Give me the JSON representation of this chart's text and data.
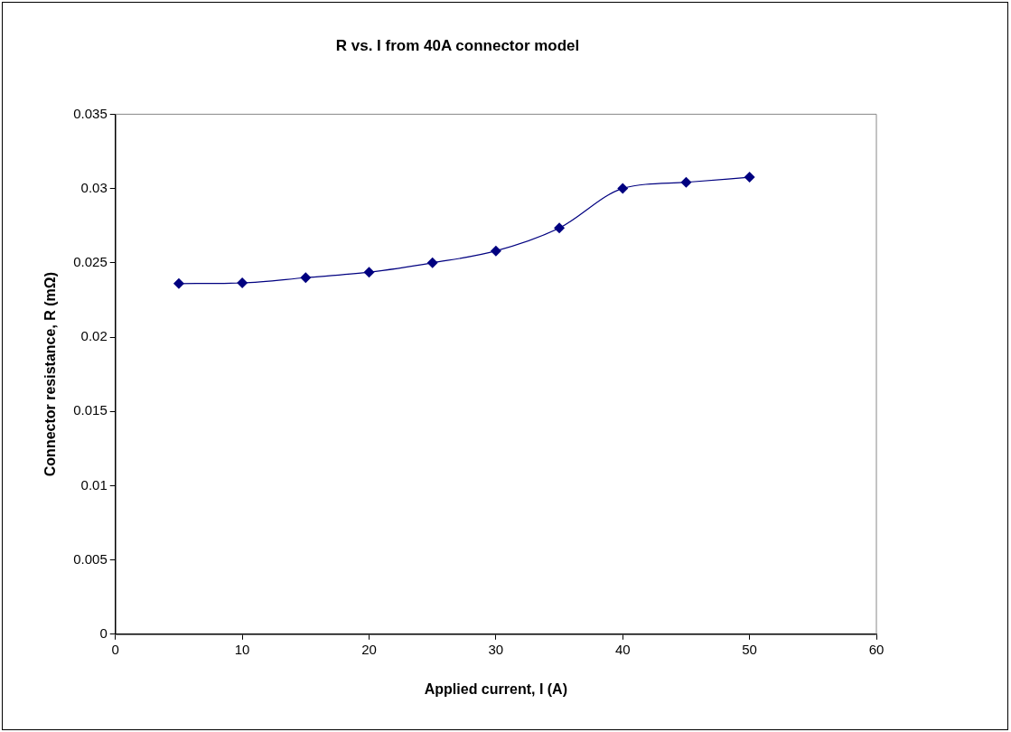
{
  "chart_data": {
    "type": "line",
    "title": "R vs. I from 40A connector model",
    "xlabel": "Applied current, I (A)",
    "ylabel": "Connector resistance, R (mΩ)",
    "x": [
      5,
      10,
      15,
      20,
      25,
      30,
      35,
      40,
      45,
      50
    ],
    "series": [
      {
        "color": "#000080",
        "values": [
          0.0236,
          0.02365,
          0.024,
          0.02437,
          0.025,
          0.0258,
          0.02734,
          0.03,
          0.03042,
          0.03076
        ]
      }
    ],
    "xlim": [
      0,
      60
    ],
    "xticks": [
      0,
      10,
      20,
      30,
      40,
      50,
      60
    ],
    "ylim": [
      0,
      0.035
    ],
    "yticks": [
      0,
      0.005,
      0.01,
      0.015,
      0.02,
      0.025,
      0.03,
      0.035
    ],
    "grid": false,
    "legend": false,
    "marker": "diamond",
    "line_style": "solid"
  }
}
